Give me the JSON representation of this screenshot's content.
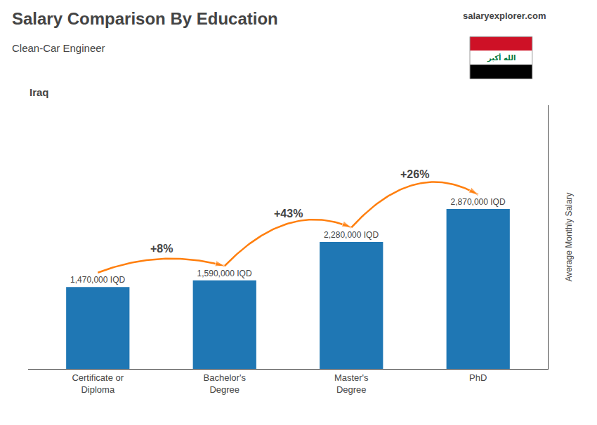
{
  "chart_data": {
    "type": "bar",
    "title": "Salary Comparison By Education",
    "subtitle": "Clean-Car Engineer",
    "ylabel": "Average Monthly Salary",
    "categories": [
      "Certificate or\nDiploma",
      "Bachelor's\nDegree",
      "Master's\nDegree",
      "PhD"
    ],
    "values": [
      1470000,
      1590000,
      2280000,
      2870000
    ],
    "value_labels": [
      "1,470,000 IQD",
      "1,590,000 IQD",
      "2,280,000 IQD",
      "2,870,000 IQD"
    ],
    "data_labels": true,
    "ylim": [
      0,
      4735500
    ],
    "grid": false,
    "tick_labels": "x",
    "annotations": {
      "changes": [
        "+8%",
        "+43%",
        "+26%"
      ],
      "country": "Iraq",
      "brand": "salaryexplorer.com",
      "flag": {
        "text": "الله أكبر",
        "color": "#007a3d",
        "colors": [
          "#ce1126",
          "#ffffff",
          "#000000"
        ]
      }
    }
  }
}
